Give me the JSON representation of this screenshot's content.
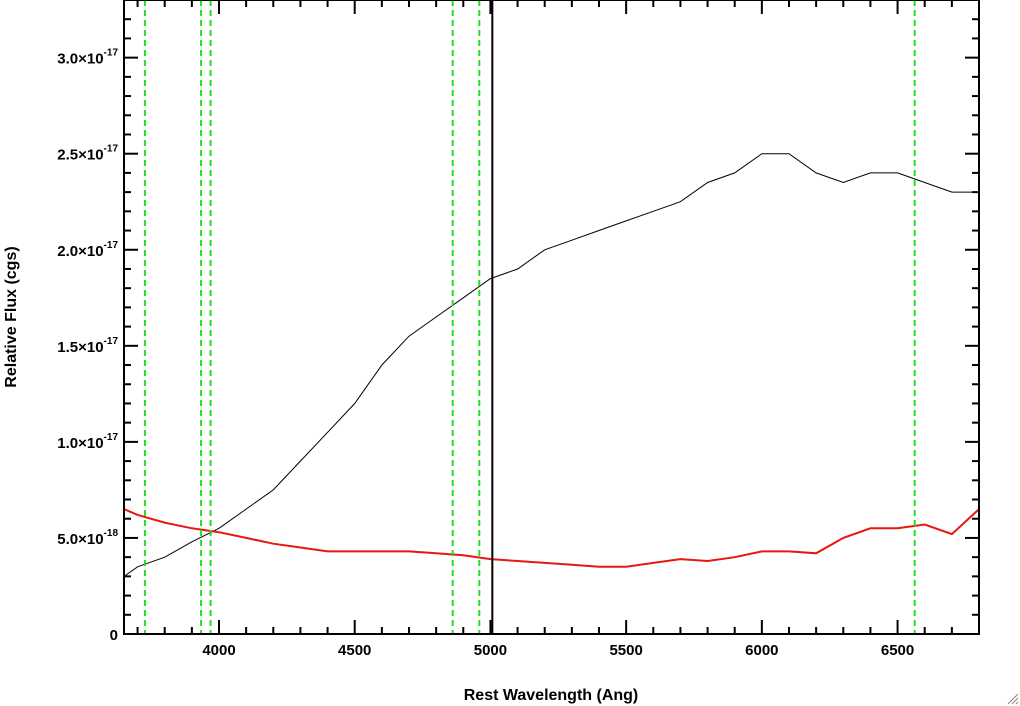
{
  "chart_data": {
    "type": "line",
    "title": "",
    "xlabel": "Rest Wavelength (Ang)",
    "ylabel": "Relative Flux (cgs)",
    "xlim": [
      3650,
      6800
    ],
    "ylim": [
      0,
      3.3e-17
    ],
    "x_ticks": [
      4000,
      4500,
      5000,
      5500,
      6000,
      6500
    ],
    "x_tick_labels": [
      "4000",
      "4500",
      "5000",
      "5500",
      "6000",
      "6500"
    ],
    "y_ticks": [
      0,
      5e-18,
      1e-17,
      1.5e-17,
      2e-17,
      2.5e-17,
      3e-17
    ],
    "y_tick_labels": [
      {
        "mant": "0",
        "exp": ""
      },
      {
        "mant": "5.0×10",
        "exp": "-18"
      },
      {
        "mant": "1.0×10",
        "exp": "-17"
      },
      {
        "mant": "1.5×10",
        "exp": "-17"
      },
      {
        "mant": "2.0×10",
        "exp": "-17"
      },
      {
        "mant": "2.5×10",
        "exp": "-17"
      },
      {
        "mant": "3.0×10",
        "exp": "-17"
      }
    ],
    "vlines_dashed": [
      3727,
      3934,
      3969,
      4861,
      4959,
      6563
    ],
    "vlines_solid": [
      5007
    ],
    "grid": false,
    "legend": "none",
    "series": [
      {
        "role": "spectrum",
        "color": "#000000",
        "x": [
          3650,
          3700,
          3800,
          3900,
          4000,
          4100,
          4200,
          4300,
          4400,
          4500,
          4600,
          4700,
          4800,
          4900,
          5000,
          5100,
          5200,
          5300,
          5400,
          5500,
          5600,
          5700,
          5800,
          5900,
          6000,
          6100,
          6200,
          6300,
          6400,
          6500,
          6600,
          6700,
          6800
        ],
        "y": [
          3e-18,
          3.5e-18,
          4e-18,
          4.8e-18,
          5.5e-18,
          6.5e-18,
          7.5e-18,
          9e-18,
          1.05e-17,
          1.2e-17,
          1.4e-17,
          1.55e-17,
          1.65e-17,
          1.75e-17,
          1.85e-17,
          1.9e-17,
          2e-17,
          2.05e-17,
          2.1e-17,
          2.15e-17,
          2.2e-17,
          2.25e-17,
          2.35e-17,
          2.4e-17,
          2.5e-17,
          2.5e-17,
          2.4e-17,
          2.35e-17,
          2.4e-17,
          2.4e-17,
          2.35e-17,
          2.3e-17,
          2.3e-17
        ]
      },
      {
        "role": "error",
        "color": "#e8170f",
        "x": [
          3650,
          3700,
          3800,
          3900,
          4000,
          4100,
          4200,
          4300,
          4400,
          4500,
          4600,
          4700,
          4800,
          4900,
          5000,
          5100,
          5200,
          5300,
          5400,
          5500,
          5600,
          5700,
          5800,
          5900,
          6000,
          6100,
          6200,
          6300,
          6400,
          6500,
          6600,
          6700,
          6800
        ],
        "y": [
          6.5e-18,
          6.2e-18,
          5.8e-18,
          5.5e-18,
          5.3e-18,
          5e-18,
          4.7e-18,
          4.5e-18,
          4.3e-18,
          4.3e-18,
          4.3e-18,
          4.3e-18,
          4.2e-18,
          4.1e-18,
          3.9e-18,
          3.8e-18,
          3.7e-18,
          3.6e-18,
          3.5e-18,
          3.5e-18,
          3.7e-18,
          3.9e-18,
          3.8e-18,
          4e-18,
          4.3e-18,
          4.3e-18,
          4.2e-18,
          5e-18,
          5.5e-18,
          5.5e-18,
          5.7e-18,
          5.2e-18,
          6.5e-18
        ]
      }
    ]
  }
}
